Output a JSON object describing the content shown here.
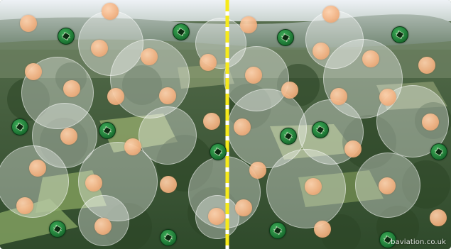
{
  "watermark": "baviation.co.uk",
  "colors": {
    "divider": "#f7ea1a",
    "coin": "#f4b383",
    "node": "#1f7a36",
    "sky": "#dfe6ee",
    "forest": "#3d5a35"
  },
  "icons": {
    "node": "green-circuit-node-icon",
    "coin": "orange-dot-icon"
  }
}
